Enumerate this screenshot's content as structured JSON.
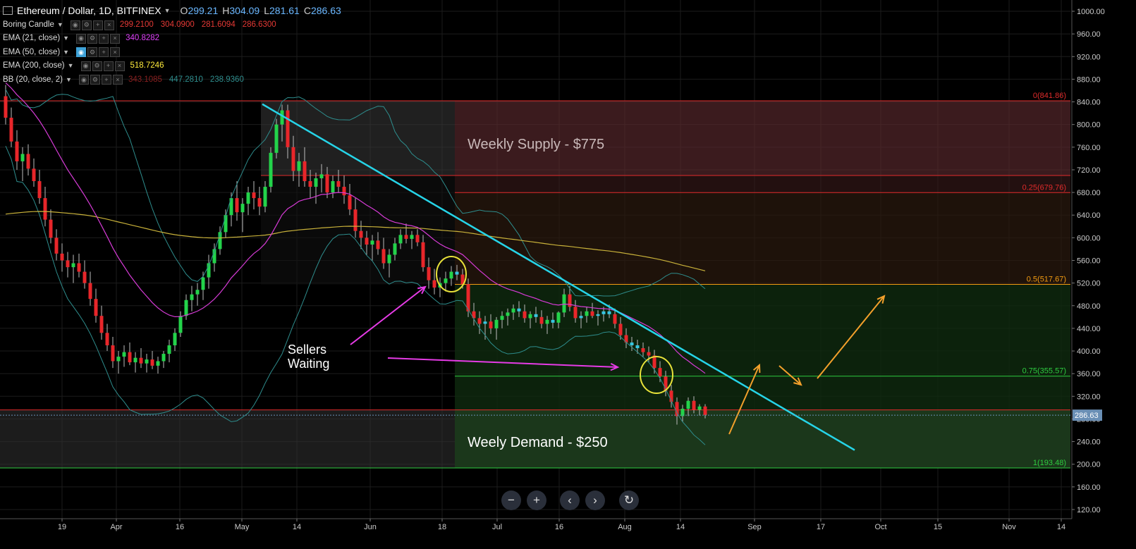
{
  "header": {
    "symbol": "Ethereum / Dollar, 1D, BITFINEX",
    "open_label": "O",
    "open": "299.21",
    "high_label": "H",
    "high": "304.09",
    "low_label": "L",
    "low": "281.61",
    "close_label": "C",
    "close": "286.63"
  },
  "indicators": [
    {
      "name": "Boring Candle",
      "values": [
        "299.2100",
        "304.0900",
        "281.6094",
        "286.6300"
      ],
      "colors": [
        "#e53935",
        "#e53935",
        "#e53935",
        "#e53935"
      ]
    },
    {
      "name": "EMA (21, close)",
      "values": [
        "340.8282"
      ],
      "colors": [
        "#e040fb"
      ]
    },
    {
      "name": "EMA (50, close)",
      "values": [],
      "colors": []
    },
    {
      "name": "EMA (200, close)",
      "values": [
        "518.7246"
      ],
      "colors": [
        "#ffeb3b"
      ]
    },
    {
      "name": "BB (20, close, 2)",
      "values": [
        "343.1085",
        "447.2810",
        "238.9360"
      ],
      "colors": [
        "#8a2020",
        "#2e8d8d",
        "#2e8d8d"
      ]
    }
  ],
  "colors": {
    "background": "#000000",
    "up_candle": "#23d34a",
    "down_candle": "#e8262a",
    "neutral_candle": "#36c6e0",
    "ema21": "#d63bd6",
    "ema200": "#c9b23a",
    "bollinger": "#2e8d8d",
    "trendline": "#26d4e8",
    "annotation_arrow_pink": "#e63be6",
    "annotation_arrow_orange": "#f3a02b",
    "supply_zone": "#5a2a2e",
    "demand_zone": "#1d3a1d",
    "circle": "#e8e23a",
    "fib_red": "#e02b2b",
    "fib_orange": "#f39c12",
    "fib_green": "#2ecc40"
  },
  "chart_data": {
    "type": "candlestick",
    "y_axis_labels": [
      "1000.00",
      "960.00",
      "920.00",
      "880.00",
      "840.00",
      "800.00",
      "760.00",
      "720.00",
      "680.00",
      "640.00",
      "600.00",
      "560.00",
      "520.00",
      "480.00",
      "440.00",
      "400.00",
      "360.00",
      "320.00",
      "280.00",
      "240.00",
      "200.00",
      "160.00",
      "120.00"
    ],
    "ylim": [
      116,
      1002
    ],
    "x_axis_labels": [
      "19",
      "Apr",
      "16",
      "May",
      "14",
      "Jun",
      "18",
      "Jul",
      "16",
      "Aug",
      "14",
      "Sep",
      "17",
      "Oct",
      "15",
      "Nov",
      "14"
    ],
    "last_price_label": "286.63",
    "fib_levels": [
      {
        "label": "0(841.86)",
        "value": 841.86
      },
      {
        "label": "0.25(679.76)",
        "value": 679.76
      },
      {
        "label": "0.5(517.67)",
        "value": 517.67
      },
      {
        "label": "0.75(355.57)",
        "value": 355.57
      },
      {
        "label": "1(193.48)",
        "value": 193.48
      }
    ],
    "zones": [
      {
        "label": "Weekly Supply - $775",
        "top": 841.86,
        "bottom": 710
      },
      {
        "label": "Weely Demand - $250",
        "top": 296,
        "bottom": 193.48
      }
    ],
    "annotation_text": [
      "Sellers",
      "Waiting"
    ],
    "ohlc": [
      [
        850,
        870,
        800,
        812
      ],
      [
        812,
        830,
        760,
        770
      ],
      [
        770,
        790,
        720,
        735
      ],
      [
        735,
        760,
        700,
        748
      ],
      [
        748,
        765,
        710,
        722
      ],
      [
        722,
        740,
        690,
        700
      ],
      [
        700,
        720,
        660,
        670
      ],
      [
        670,
        690,
        620,
        632
      ],
      [
        632,
        650,
        590,
        600
      ],
      [
        600,
        615,
        560,
        572
      ],
      [
        572,
        590,
        540,
        560
      ],
      [
        560,
        575,
        530,
        548
      ],
      [
        548,
        570,
        520,
        555
      ],
      [
        555,
        572,
        530,
        540
      ],
      [
        540,
        560,
        510,
        520
      ],
      [
        520,
        540,
        480,
        492
      ],
      [
        492,
        510,
        450,
        462
      ],
      [
        462,
        480,
        420,
        432
      ],
      [
        432,
        448,
        400,
        410
      ],
      [
        410,
        425,
        370,
        382
      ],
      [
        382,
        400,
        360,
        390
      ],
      [
        390,
        410,
        372,
        398
      ],
      [
        398,
        415,
        375,
        380
      ],
      [
        380,
        398,
        362,
        388
      ],
      [
        388,
        405,
        370,
        378
      ],
      [
        378,
        395,
        362,
        385
      ],
      [
        385,
        400,
        368,
        374
      ],
      [
        374,
        390,
        360,
        382
      ],
      [
        382,
        400,
        370,
        395
      ],
      [
        395,
        420,
        380,
        410
      ],
      [
        410,
        440,
        400,
        432
      ],
      [
        432,
        470,
        425,
        462
      ],
      [
        462,
        500,
        455,
        490
      ],
      [
        490,
        515,
        470,
        500
      ],
      [
        500,
        520,
        480,
        508
      ],
      [
        508,
        540,
        490,
        530
      ],
      [
        530,
        570,
        510,
        555
      ],
      [
        555,
        590,
        540,
        580
      ],
      [
        580,
        620,
        570,
        610
      ],
      [
        610,
        650,
        600,
        640
      ],
      [
        640,
        680,
        620,
        670
      ],
      [
        670,
        700,
        630,
        645
      ],
      [
        645,
        670,
        610,
        660
      ],
      [
        660,
        690,
        640,
        680
      ],
      [
        680,
        700,
        650,
        670
      ],
      [
        670,
        690,
        640,
        655
      ],
      [
        655,
        700,
        645,
        690
      ],
      [
        690,
        760,
        680,
        750
      ],
      [
        750,
        810,
        740,
        800
      ],
      [
        800,
        835,
        770,
        825
      ],
      [
        825,
        835,
        740,
        760
      ],
      [
        760,
        780,
        700,
        718
      ],
      [
        718,
        750,
        690,
        735
      ],
      [
        735,
        760,
        690,
        700
      ],
      [
        700,
        720,
        670,
        690
      ],
      [
        690,
        715,
        660,
        705
      ],
      [
        705,
        730,
        680,
        712
      ],
      [
        712,
        725,
        670,
        680
      ],
      [
        680,
        710,
        670,
        700
      ],
      [
        700,
        720,
        680,
        690
      ],
      [
        690,
        710,
        660,
        675
      ],
      [
        675,
        695,
        640,
        650
      ],
      [
        650,
        670,
        600,
        612
      ],
      [
        612,
        630,
        580,
        600
      ],
      [
        600,
        612,
        570,
        588
      ],
      [
        588,
        605,
        560,
        595
      ],
      [
        595,
        610,
        570,
        580
      ],
      [
        580,
        600,
        545,
        555
      ],
      [
        555,
        580,
        530,
        570
      ],
      [
        570,
        600,
        560,
        590
      ],
      [
        590,
        615,
        580,
        605
      ],
      [
        605,
        625,
        590,
        598
      ],
      [
        598,
        612,
        580,
        605
      ],
      [
        605,
        615,
        585,
        592
      ],
      [
        592,
        605,
        540,
        548
      ],
      [
        548,
        565,
        510,
        525
      ],
      [
        525,
        545,
        500,
        512
      ],
      [
        512,
        530,
        495,
        520
      ],
      [
        520,
        540,
        505,
        528
      ],
      [
        528,
        550,
        515,
        540
      ],
      [
        540,
        552,
        525,
        535
      ],
      [
        535,
        545,
        510,
        518
      ],
      [
        518,
        528,
        460,
        470
      ],
      [
        470,
        485,
        445,
        458
      ],
      [
        458,
        470,
        430,
        448
      ],
      [
        448,
        462,
        420,
        452
      ],
      [
        452,
        465,
        430,
        440
      ],
      [
        440,
        460,
        420,
        455
      ],
      [
        455,
        470,
        440,
        462
      ],
      [
        462,
        475,
        445,
        468
      ],
      [
        468,
        482,
        455,
        475
      ],
      [
        475,
        488,
        460,
        470
      ],
      [
        470,
        482,
        450,
        458
      ],
      [
        458,
        470,
        440,
        465
      ],
      [
        465,
        478,
        450,
        460
      ],
      [
        460,
        472,
        440,
        448
      ],
      [
        448,
        462,
        430,
        455
      ],
      [
        455,
        468,
        440,
        450
      ],
      [
        450,
        470,
        440,
        468
      ],
      [
        468,
        510,
        460,
        500
      ],
      [
        500,
        515,
        470,
        478
      ],
      [
        478,
        490,
        450,
        458
      ],
      [
        458,
        470,
        440,
        462
      ],
      [
        462,
        478,
        450,
        470
      ],
      [
        470,
        485,
        458,
        462
      ],
      [
        462,
        472,
        445,
        465
      ],
      [
        465,
        478,
        452,
        470
      ],
      [
        470,
        482,
        458,
        465
      ],
      [
        465,
        475,
        440,
        448
      ],
      [
        448,
        460,
        420,
        428
      ],
      [
        428,
        440,
        405,
        415
      ],
      [
        415,
        425,
        400,
        410
      ],
      [
        410,
        420,
        395,
        405
      ],
      [
        405,
        415,
        390,
        398
      ],
      [
        398,
        408,
        380,
        392
      ],
      [
        392,
        402,
        360,
        370
      ],
      [
        370,
        382,
        345,
        355
      ],
      [
        355,
        365,
        320,
        330
      ],
      [
        330,
        340,
        300,
        310
      ],
      [
        310,
        318,
        270,
        285
      ],
      [
        285,
        305,
        275,
        298
      ],
      [
        298,
        318,
        285,
        312
      ],
      [
        312,
        320,
        290,
        296
      ],
      [
        296,
        306,
        286,
        302
      ],
      [
        302,
        306,
        281,
        287
      ]
    ]
  }
}
